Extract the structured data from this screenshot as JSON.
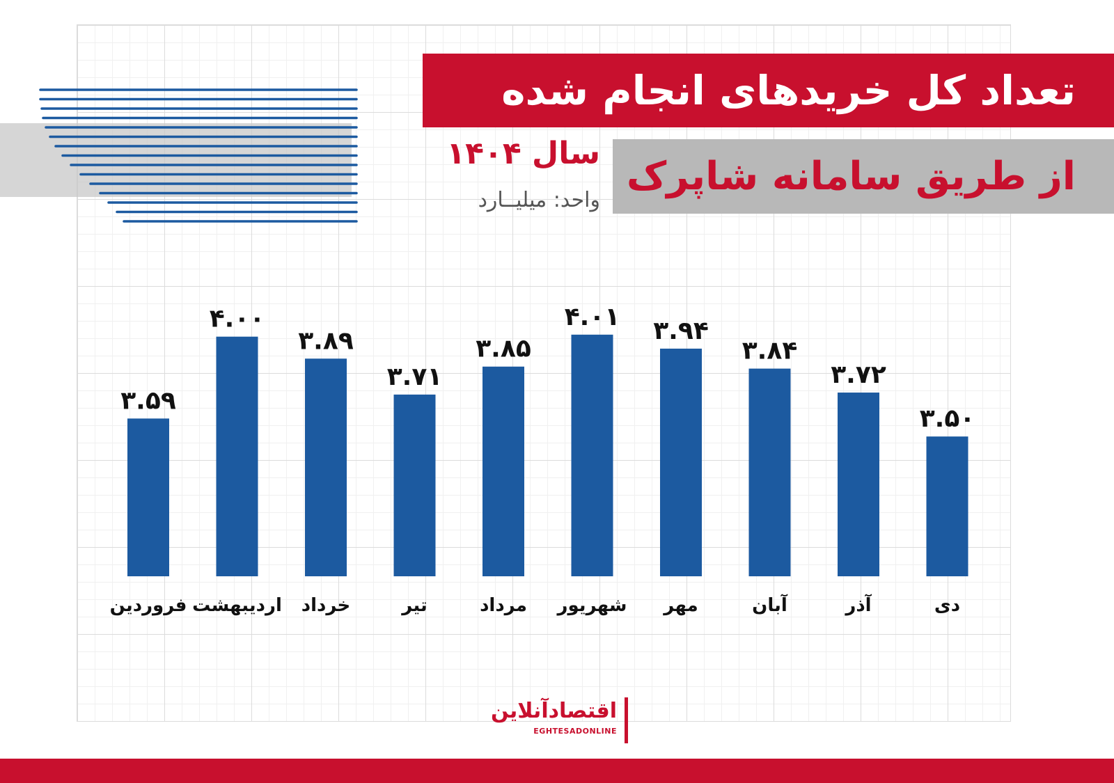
{
  "title": "تعداد کل خریدهای انجام شده",
  "subtitle": "از طریق سامانه شاپرک",
  "year_label": "سال ۱۴۰۴",
  "unit_label": "واحد: میلیــارد",
  "brand": {
    "name": "اقتصادآنلاین",
    "latin": "EGHTESADONLINE"
  },
  "colors": {
    "accent": "#c8102e",
    "bar": "#1c5aa0",
    "panel_gray": "#b8b8b8"
  },
  "chart_data": {
    "type": "bar",
    "categories": [
      "فروردین",
      "اردیبهشت",
      "خرداد",
      "تیر",
      "مرداد",
      "شهریور",
      "مهر",
      "آبان",
      "آذر",
      "دی"
    ],
    "values": [
      3.59,
      4.0,
      3.89,
      3.71,
      3.85,
      4.01,
      3.94,
      3.84,
      3.72,
      3.5
    ],
    "value_labels": [
      "۳.۵۹",
      "۴.۰۰",
      "۳.۸۹",
      "۳.۷۱",
      "۳.۸۵",
      "۴.۰۱",
      "۳.۹۴",
      "۳.۸۴",
      "۳.۷۲",
      "۳.۵۰"
    ],
    "title": "تعداد کل خریدهای انجام شده",
    "unit": "میلیارد",
    "ylim": [
      2.8,
      4.1
    ],
    "grid": true
  }
}
